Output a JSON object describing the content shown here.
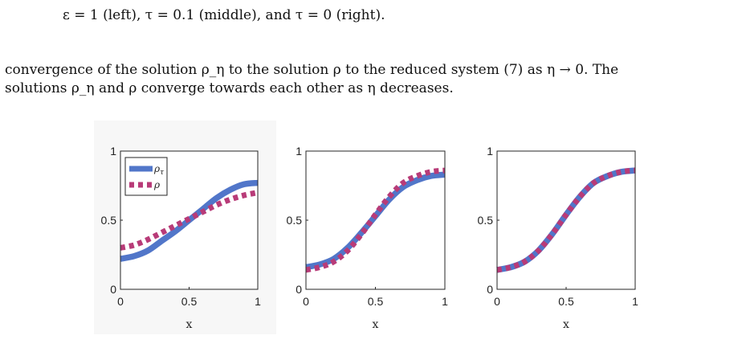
{
  "text": {
    "line_top_partial": "ε = 1 (left), τ = 0.1 (middle), and τ = 0 (right).",
    "para_line_1": "convergence of the solution ρ_η to the solution ρ to the reduced system (7) as η → 0. The",
    "para_line_2": "solutions ρ_η and ρ converge towards each other as η decreases."
  },
  "chart_data": [
    {
      "type": "line",
      "panel": "left",
      "xlabel": "x",
      "ylabel": "",
      "xlim": [
        0,
        1
      ],
      "ylim": [
        0,
        1
      ],
      "xticks": [
        "0",
        "0.5",
        "1"
      ],
      "yticks": [
        "0",
        "0.5",
        "1"
      ],
      "legend": {
        "placement": "top-left",
        "entries": [
          "ρ_τ",
          "ρ"
        ]
      },
      "series": [
        {
          "name": "ρ_τ",
          "color": "#5176c9",
          "style": "solid",
          "x": [
            0,
            0.1,
            0.2,
            0.3,
            0.4,
            0.5,
            0.6,
            0.7,
            0.8,
            0.9,
            1.0
          ],
          "y": [
            0.22,
            0.24,
            0.28,
            0.35,
            0.42,
            0.5,
            0.58,
            0.66,
            0.72,
            0.76,
            0.77
          ]
        },
        {
          "name": "ρ",
          "color": "#b83b78",
          "style": "dotted",
          "x": [
            0,
            0.1,
            0.2,
            0.3,
            0.4,
            0.5,
            0.6,
            0.7,
            0.8,
            0.9,
            1.0
          ],
          "y": [
            0.3,
            0.32,
            0.36,
            0.41,
            0.46,
            0.51,
            0.56,
            0.61,
            0.65,
            0.68,
            0.7
          ]
        }
      ]
    },
    {
      "type": "line",
      "panel": "middle",
      "xlabel": "x",
      "ylabel": "",
      "xlim": [
        0,
        1
      ],
      "ylim": [
        0,
        1
      ],
      "xticks": [
        "0",
        "0.5",
        "1"
      ],
      "yticks": [
        "0",
        "0.5",
        "1"
      ],
      "series": [
        {
          "name": "ρ_τ",
          "color": "#5176c9",
          "style": "solid",
          "x": [
            0,
            0.1,
            0.2,
            0.3,
            0.4,
            0.5,
            0.6,
            0.7,
            0.8,
            0.9,
            1.0
          ],
          "y": [
            0.16,
            0.18,
            0.22,
            0.3,
            0.41,
            0.53,
            0.65,
            0.74,
            0.79,
            0.82,
            0.83
          ]
        },
        {
          "name": "ρ",
          "color": "#b83b78",
          "style": "dotted",
          "x": [
            0,
            0.1,
            0.2,
            0.3,
            0.4,
            0.5,
            0.6,
            0.7,
            0.8,
            0.9,
            1.0
          ],
          "y": [
            0.14,
            0.16,
            0.2,
            0.28,
            0.4,
            0.54,
            0.67,
            0.77,
            0.82,
            0.85,
            0.86
          ]
        }
      ]
    },
    {
      "type": "line",
      "panel": "right",
      "xlabel": "x",
      "ylabel": "",
      "xlim": [
        0,
        1
      ],
      "ylim": [
        0,
        1
      ],
      "xticks": [
        "0",
        "0.5",
        "1"
      ],
      "yticks": [
        "0",
        "0.5",
        "1"
      ],
      "series": [
        {
          "name": "ρ_τ",
          "color": "#5176c9",
          "style": "solid",
          "x": [
            0,
            0.1,
            0.2,
            0.3,
            0.4,
            0.5,
            0.6,
            0.7,
            0.8,
            0.9,
            1.0
          ],
          "y": [
            0.14,
            0.16,
            0.2,
            0.28,
            0.4,
            0.54,
            0.67,
            0.77,
            0.82,
            0.85,
            0.86
          ]
        },
        {
          "name": "ρ",
          "color": "#b83b78",
          "style": "dotted",
          "x": [
            0,
            0.1,
            0.2,
            0.3,
            0.4,
            0.5,
            0.6,
            0.7,
            0.8,
            0.9,
            1.0
          ],
          "y": [
            0.14,
            0.16,
            0.2,
            0.28,
            0.4,
            0.54,
            0.67,
            0.77,
            0.82,
            0.85,
            0.86
          ]
        }
      ]
    }
  ]
}
